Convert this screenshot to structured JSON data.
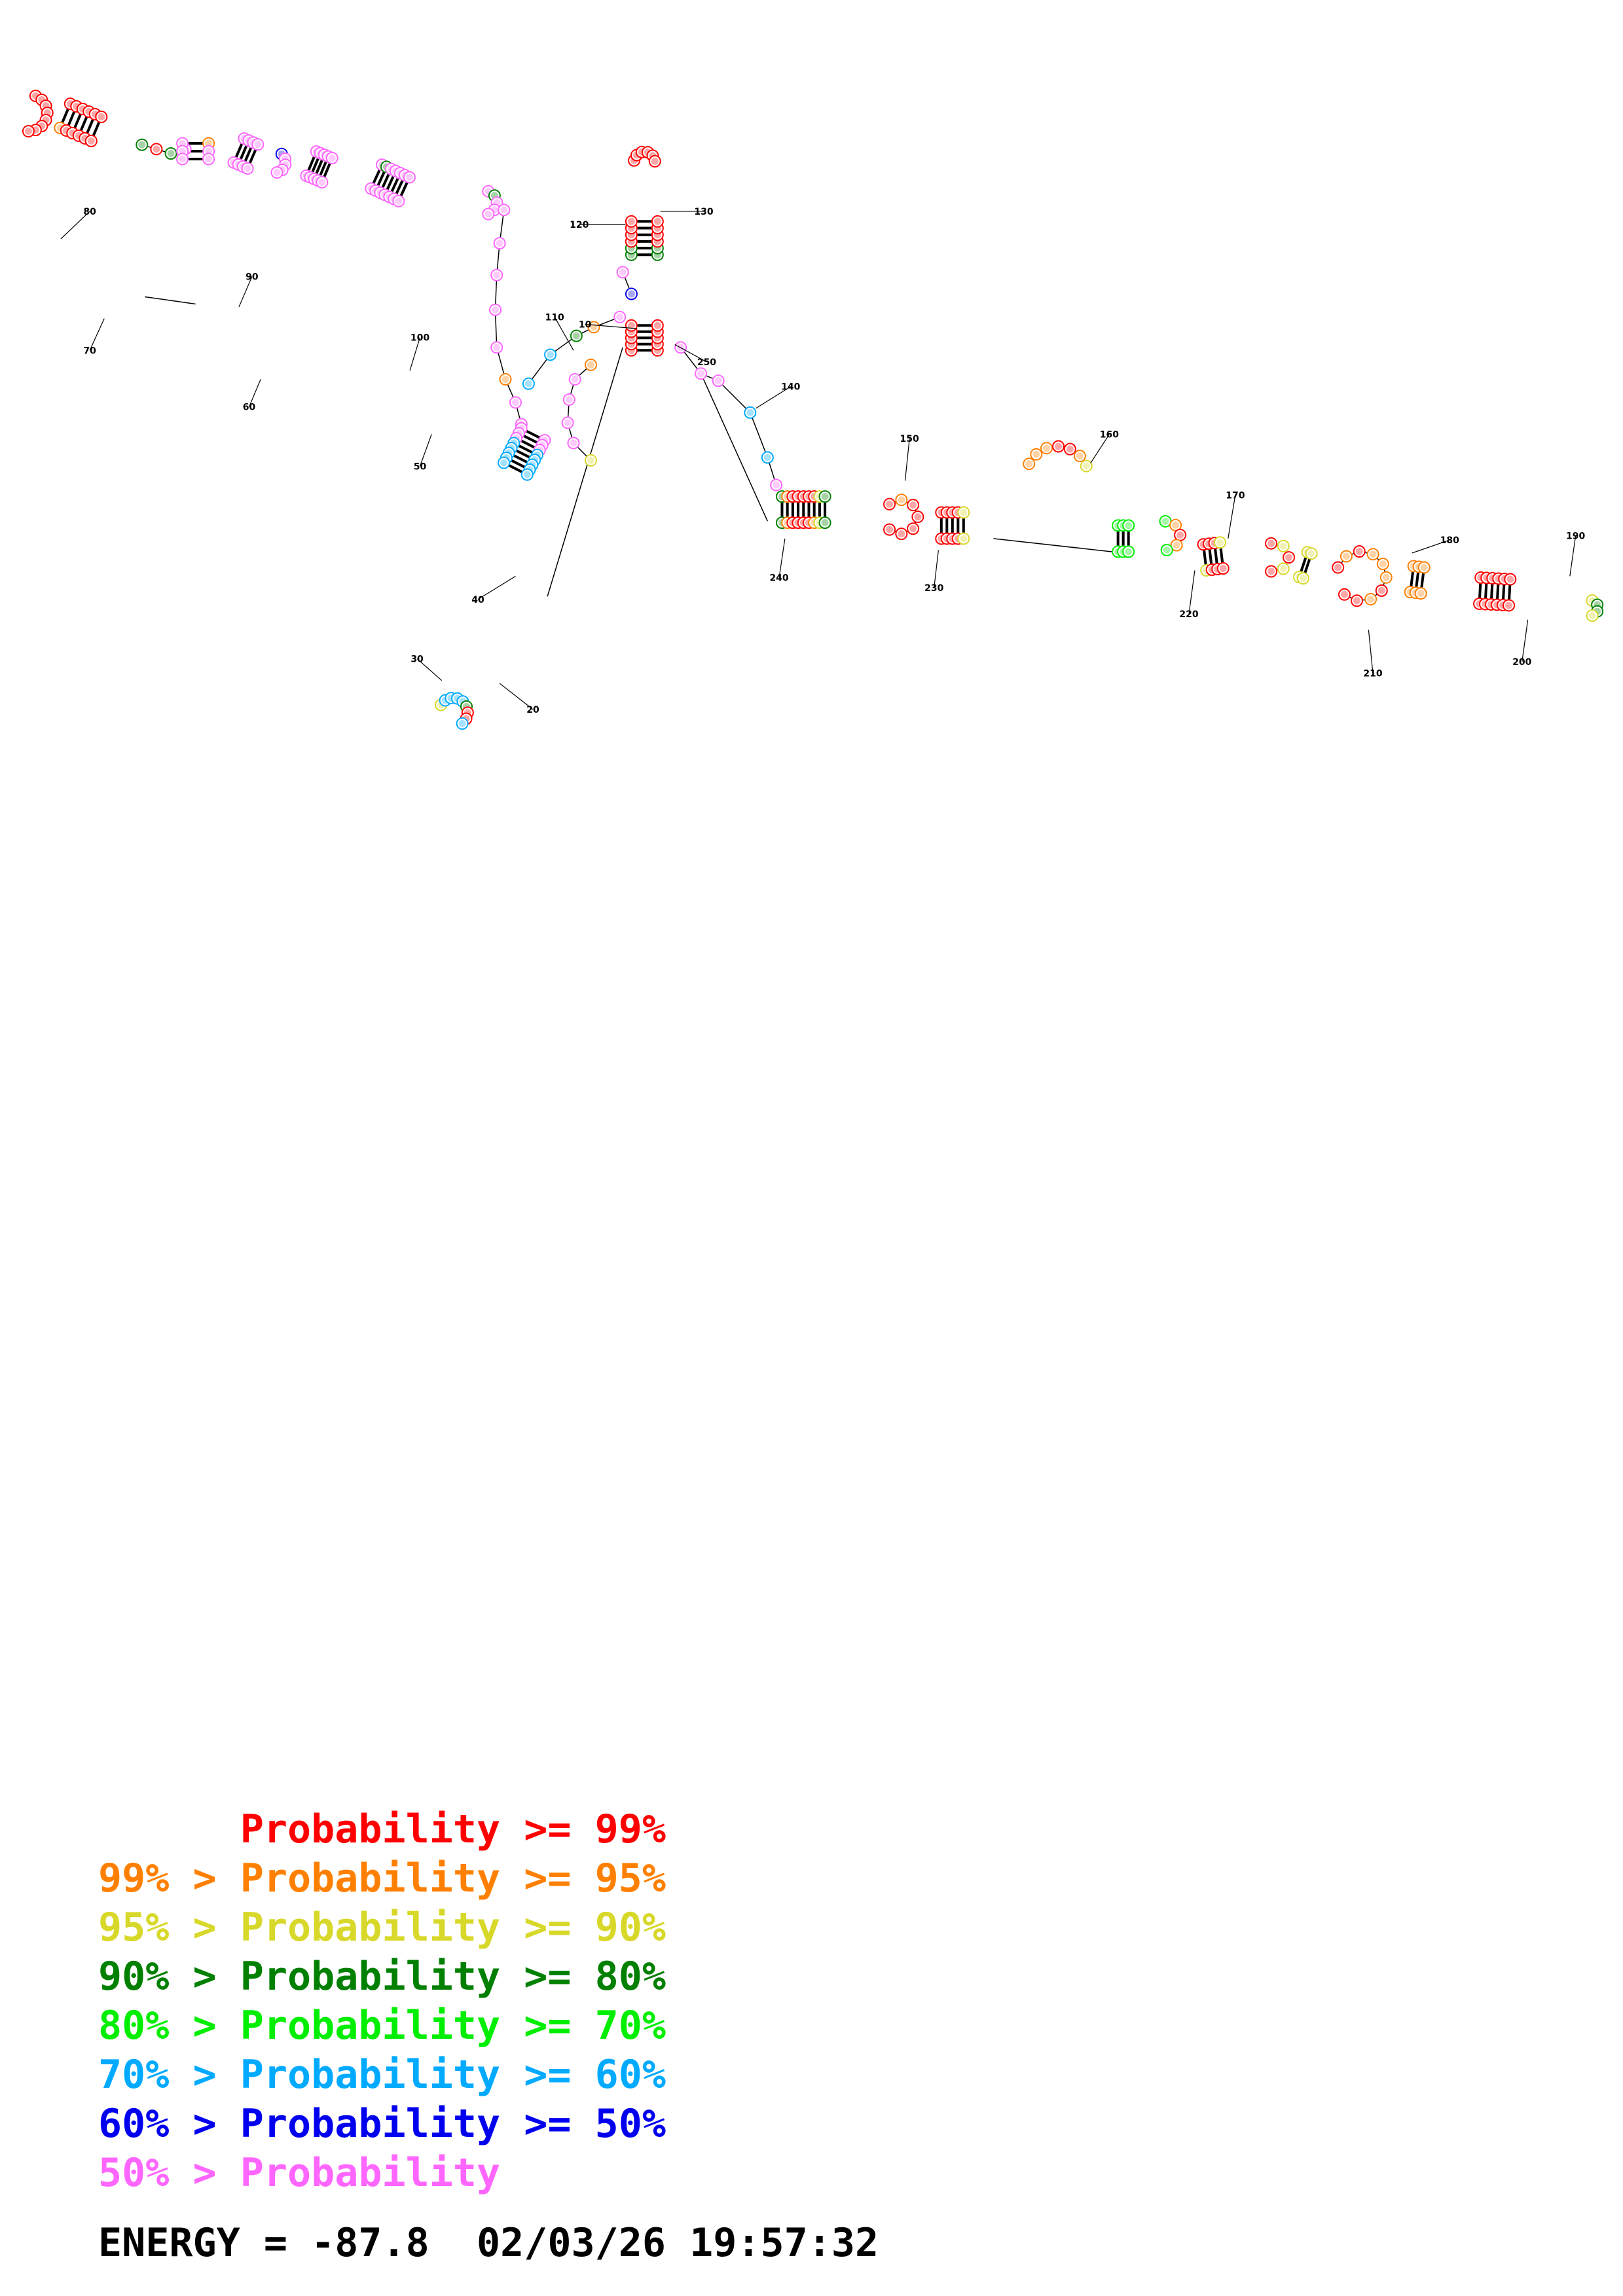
{
  "colors": {
    "p99": "#ff0000",
    "p95": "#ff8000",
    "p90": "#d8d82a",
    "p80": "#008000",
    "p70": "#00ee00",
    "p60": "#00aaff",
    "p50": "#0000ee",
    "plow": "#ff66ff"
  },
  "legend": [
    {
      "prefix": "",
      "label": "Probability >= 99%",
      "color_key": "p99"
    },
    {
      "prefix": "99% > ",
      "label": "Probability >= 95%",
      "color_key": "p95"
    },
    {
      "prefix": "95% > ",
      "label": "Probability >= 90%",
      "color_key": "p90"
    },
    {
      "prefix": "90% > ",
      "label": "Probability >= 80%",
      "color_key": "p80"
    },
    {
      "prefix": "80% > ",
      "label": "Probability >= 70%",
      "color_key": "p70"
    },
    {
      "prefix": "70% > ",
      "label": "Probability >= 60%",
      "color_key": "p60"
    },
    {
      "prefix": "60% > ",
      "label": "Probability >= 50%",
      "color_key": "p50"
    },
    {
      "prefix": "50% > ",
      "label": "Probability",
      "color_key": "plow"
    }
  ],
  "energy": {
    "label": "ENERGY = ",
    "value": "-87.8",
    "date": "02/03/26",
    "time": "19:57:32"
  },
  "structure": {
    "position_labels": [
      "10",
      "20",
      "30",
      "40",
      "50",
      "60",
      "70",
      "80",
      "90",
      "100",
      "110",
      "120",
      "130",
      "140",
      "150",
      "160",
      "170",
      "180",
      "190",
      "200",
      "210",
      "220",
      "230",
      "240",
      "250"
    ],
    "regions": [
      {
        "name": "left-arm",
        "prob_key": "plow"
      },
      {
        "name": "top-hairpin",
        "prob_key": "p99"
      },
      {
        "name": "bottom-hairpin",
        "prob_key": "p60"
      },
      {
        "name": "right-helix-1",
        "prob_key": "p99"
      },
      {
        "name": "right-loop-1",
        "prob_key": "p95"
      },
      {
        "name": "right-helix-2",
        "prob_key": "p99"
      },
      {
        "name": "right-loop-2",
        "prob_key": "p90"
      },
      {
        "name": "right-helix-3",
        "prob_key": "p99"
      }
    ]
  }
}
